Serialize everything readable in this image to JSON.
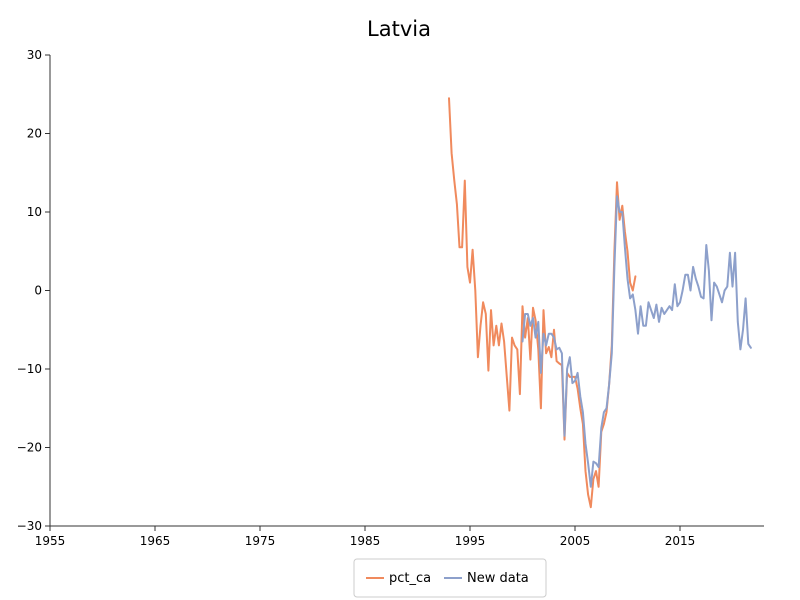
{
  "chart_data": {
    "type": "line",
    "title": "Latvia",
    "xlim": [
      1955,
      2018
    ],
    "ylim": [
      -30,
      30
    ],
    "x_ticks": [
      1955,
      1965,
      1975,
      1985,
      1995,
      2005,
      2015
    ],
    "x_tick_labels": [
      "1955",
      "1965",
      "1975",
      "1985",
      "1995",
      "2005",
      "2015"
    ],
    "y_ticks": [
      -30,
      -20,
      -10,
      0,
      10,
      20,
      30
    ],
    "y_tick_labels": [
      "−30",
      "−20",
      "−10",
      "0",
      "10",
      "20",
      "30"
    ],
    "grid": false,
    "legend_position": "bottom-center",
    "series": [
      {
        "name": "pct_ca",
        "color": "#f08a5d",
        "points": [
          [
            1993.0,
            24.5
          ],
          [
            1993.25,
            17.5
          ],
          [
            1993.5,
            14.0
          ],
          [
            1993.75,
            11.0
          ],
          [
            1994.0,
            5.5
          ],
          [
            1994.25,
            5.5
          ],
          [
            1994.5,
            14.0
          ],
          [
            1994.75,
            3.0
          ],
          [
            1995.0,
            1.0
          ],
          [
            1995.25,
            5.2
          ],
          [
            1995.5,
            0.0
          ],
          [
            1995.75,
            -8.5
          ],
          [
            1996.0,
            -4.5
          ],
          [
            1996.25,
            -1.5
          ],
          [
            1996.5,
            -3.0
          ],
          [
            1996.75,
            -10.2
          ],
          [
            1997.0,
            -2.5
          ],
          [
            1997.25,
            -7.0
          ],
          [
            1997.5,
            -4.5
          ],
          [
            1997.75,
            -7.0
          ],
          [
            1998.0,
            -4.2
          ],
          [
            1998.25,
            -6.5
          ],
          [
            1998.5,
            -11.0
          ],
          [
            1998.75,
            -15.3
          ],
          [
            1999.0,
            -6.0
          ],
          [
            1999.25,
            -7.0
          ],
          [
            1999.5,
            -7.5
          ],
          [
            1999.75,
            -13.2
          ],
          [
            2000.0,
            -2.0
          ],
          [
            2000.25,
            -6.0
          ],
          [
            2000.5,
            -3.5
          ],
          [
            2000.75,
            -8.8
          ],
          [
            2001.0,
            -2.2
          ],
          [
            2001.25,
            -3.8
          ],
          [
            2001.5,
            -7.5
          ],
          [
            2001.75,
            -15.0
          ],
          [
            2002.0,
            -2.5
          ],
          [
            2002.25,
            -8.0
          ],
          [
            2002.5,
            -7.2
          ],
          [
            2002.75,
            -8.5
          ],
          [
            2003.0,
            -5.0
          ],
          [
            2003.25,
            -9.0
          ],
          [
            2003.5,
            -9.3
          ],
          [
            2003.75,
            -9.5
          ],
          [
            2004.0,
            -19.0
          ],
          [
            2004.25,
            -10.5
          ],
          [
            2004.5,
            -11.0
          ],
          [
            2004.75,
            -11.0
          ],
          [
            2005.0,
            -11.0
          ],
          [
            2005.25,
            -12.5
          ],
          [
            2005.5,
            -15.0
          ],
          [
            2005.75,
            -17.0
          ],
          [
            2006.0,
            -23.0
          ],
          [
            2006.25,
            -26.0
          ],
          [
            2006.5,
            -27.6
          ],
          [
            2006.75,
            -24.0
          ],
          [
            2007.0,
            -23.0
          ],
          [
            2007.25,
            -25.0
          ],
          [
            2007.5,
            -18.0
          ],
          [
            2007.75,
            -17.0
          ],
          [
            2008.0,
            -15.5
          ],
          [
            2008.25,
            -12.0
          ],
          [
            2008.5,
            -7.0
          ],
          [
            2008.75,
            5.0
          ],
          [
            2009.0,
            13.8
          ],
          [
            2009.25,
            9.0
          ],
          [
            2009.5,
            10.8
          ],
          [
            2009.75,
            7.5
          ],
          [
            2010.0,
            5.0
          ],
          [
            2010.25,
            1.0
          ],
          [
            2010.5,
            0.0
          ],
          [
            2010.75,
            1.8
          ]
        ]
      },
      {
        "name": "New data",
        "color": "#8da0cb",
        "points": [
          [
            2000.0,
            -6.5
          ],
          [
            2000.25,
            -3.0
          ],
          [
            2000.5,
            -3.0
          ],
          [
            2000.75,
            -4.5
          ],
          [
            2001.0,
            -3.5
          ],
          [
            2001.25,
            -6.0
          ],
          [
            2001.5,
            -4.0
          ],
          [
            2001.75,
            -10.5
          ],
          [
            2002.0,
            -5.5
          ],
          [
            2002.25,
            -7.0
          ],
          [
            2002.5,
            -5.5
          ],
          [
            2002.75,
            -5.5
          ],
          [
            2003.0,
            -6.0
          ],
          [
            2003.25,
            -7.5
          ],
          [
            2003.5,
            -7.3
          ],
          [
            2003.75,
            -8.0
          ],
          [
            2004.0,
            -18.5
          ],
          [
            2004.25,
            -10.0
          ],
          [
            2004.5,
            -8.5
          ],
          [
            2004.75,
            -11.8
          ],
          [
            2005.0,
            -11.5
          ],
          [
            2005.25,
            -10.5
          ],
          [
            2005.5,
            -13.5
          ],
          [
            2005.75,
            -15.5
          ],
          [
            2006.0,
            -19.5
          ],
          [
            2006.25,
            -22.0
          ],
          [
            2006.5,
            -25.0
          ],
          [
            2006.75,
            -21.8
          ],
          [
            2007.0,
            -22.0
          ],
          [
            2007.25,
            -22.5
          ],
          [
            2007.5,
            -17.5
          ],
          [
            2007.75,
            -15.5
          ],
          [
            2008.0,
            -15.0
          ],
          [
            2008.25,
            -12.0
          ],
          [
            2008.5,
            -8.0
          ],
          [
            2008.75,
            3.0
          ],
          [
            2009.0,
            12.0
          ],
          [
            2009.25,
            10.0
          ],
          [
            2009.5,
            10.0
          ],
          [
            2009.75,
            5.5
          ],
          [
            2010.0,
            1.5
          ],
          [
            2010.25,
            -1.0
          ],
          [
            2010.5,
            -0.5
          ],
          [
            2010.75,
            -2.5
          ],
          [
            2011.0,
            -5.5
          ],
          [
            2011.25,
            -2.0
          ],
          [
            2011.5,
            -4.5
          ],
          [
            2011.75,
            -4.5
          ],
          [
            2012.0,
            -1.5
          ],
          [
            2012.25,
            -2.5
          ],
          [
            2012.5,
            -3.5
          ],
          [
            2012.75,
            -1.8
          ],
          [
            2013.0,
            -4.0
          ],
          [
            2013.25,
            -2.2
          ],
          [
            2013.5,
            -3.0
          ],
          [
            2013.75,
            -2.5
          ],
          [
            2014.0,
            -2.0
          ],
          [
            2014.25,
            -2.5
          ],
          [
            2014.5,
            0.8
          ],
          [
            2014.75,
            -2.0
          ],
          [
            2015.0,
            -1.5
          ],
          [
            2015.25,
            0.0
          ],
          [
            2015.5,
            2.0
          ],
          [
            2015.75,
            2.0
          ],
          [
            2016.0,
            0.0
          ],
          [
            2016.25,
            3.0
          ],
          [
            2016.5,
            1.5
          ],
          [
            2016.75,
            0.5
          ],
          [
            2017.0,
            -0.8
          ],
          [
            2017.25,
            -1.0
          ],
          [
            2017.5,
            5.8
          ],
          [
            2017.75,
            2.5
          ],
          [
            2018.0,
            -3.8
          ],
          [
            2018.25,
            1.0
          ],
          [
            2018.5,
            0.5
          ],
          [
            2018.75,
            -0.5
          ],
          [
            2019.0,
            -1.5
          ],
          [
            2019.25,
            0.0
          ],
          [
            2019.5,
            0.5
          ],
          [
            2019.75,
            4.8
          ],
          [
            2020.0,
            0.5
          ],
          [
            2020.25,
            4.8
          ],
          [
            2020.5,
            -4.0
          ],
          [
            2020.75,
            -7.5
          ],
          [
            2021.0,
            -5.0
          ],
          [
            2021.25,
            -1.0
          ],
          [
            2021.5,
            -6.8
          ],
          [
            2021.75,
            -7.3
          ]
        ]
      }
    ]
  }
}
